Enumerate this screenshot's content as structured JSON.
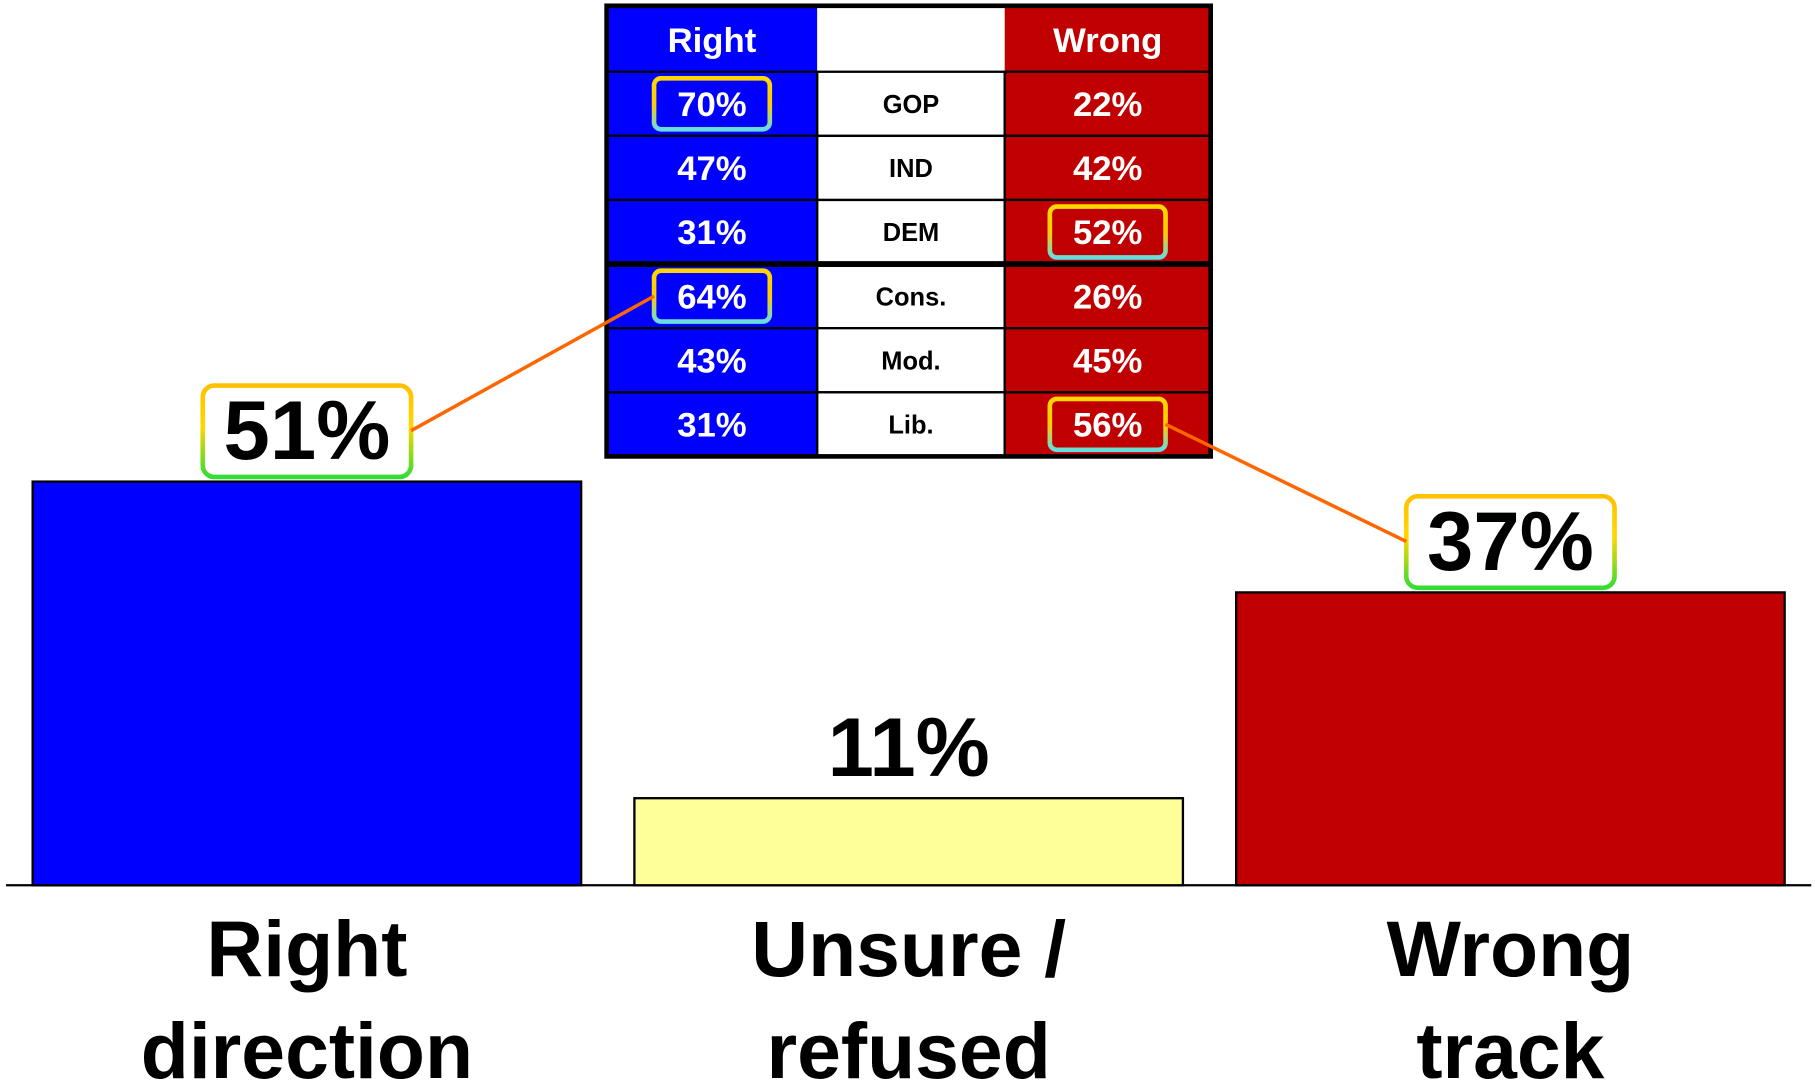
{
  "chart_data": {
    "type": "bar",
    "categories": [
      [
        "Right",
        "direction"
      ],
      [
        "Unsure /",
        "refused"
      ],
      [
        "Wrong",
        "track"
      ]
    ],
    "values": [
      51,
      11,
      37
    ],
    "value_labels": [
      "51%",
      "11%",
      "37%"
    ],
    "colors": [
      "#0000ff",
      "#ffff99",
      "#c00000"
    ],
    "highlighted": [
      true,
      false,
      true
    ]
  },
  "table": {
    "headers": {
      "right": "Right",
      "wrong": "Wrong"
    },
    "rows": [
      {
        "group": "GOP",
        "right": "70%",
        "wrong": "22%",
        "highlight": "right"
      },
      {
        "group": "IND",
        "right": "47%",
        "wrong": "42%"
      },
      {
        "group": "DEM",
        "right": "31%",
        "wrong": "52%",
        "highlight": "wrong"
      },
      {
        "group": "Cons.",
        "right": "64%",
        "wrong": "26%",
        "highlight": "right"
      },
      {
        "group": "Mod.",
        "right": "43%",
        "wrong": "45%"
      },
      {
        "group": "Lib.",
        "right": "31%",
        "wrong": "56%",
        "highlight": "wrong"
      }
    ]
  }
}
